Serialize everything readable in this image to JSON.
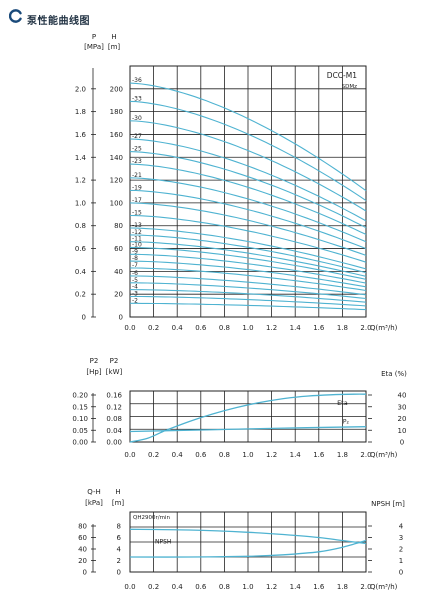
{
  "header": {
    "title": "泵性能曲线图"
  },
  "colors": {
    "curve": "#4fb3d1",
    "grid": "#222222",
    "text": "#222222",
    "logo": "#1a4a7a"
  },
  "chart_data": [
    {
      "id": "main",
      "type": "line",
      "model": "DCC-M1",
      "model_sub": "SDMz",
      "x_unit_label": "Q(m³/h)",
      "x_ticks": [
        "0.0",
        "0.2",
        "0.4",
        "0.6",
        "0.8",
        "1.0",
        "1.2",
        "1.4",
        "1.6",
        "1.8",
        "2.0"
      ],
      "xlim": [
        0,
        2.0
      ],
      "left_axis": {
        "header_symbol": "P",
        "header_unit": "[MPa]",
        "ticks": [
          "2.0",
          "1.8",
          "1.6",
          "1.4",
          "1.2",
          "1.0",
          "0.8",
          "0.6",
          "0.4",
          "0.2",
          "0"
        ]
      },
      "right_axis": {
        "header_symbol": "H",
        "header_unit": "[m]",
        "ticks": [
          "200",
          "180",
          "160",
          "140",
          "120",
          "100",
          "80",
          "60",
          "40",
          "20",
          "0"
        ]
      },
      "ylim": [
        0,
        220
      ],
      "grid": true,
      "series": [
        {
          "name": "-36",
          "h0": 205
        },
        {
          "name": "-33",
          "h0": 189
        },
        {
          "name": "-30",
          "h0": 172
        },
        {
          "name": "-27",
          "h0": 156
        },
        {
          "name": "-25",
          "h0": 145
        },
        {
          "name": "-23",
          "h0": 134
        },
        {
          "name": "-21",
          "h0": 122
        },
        {
          "name": "-19",
          "h0": 111
        },
        {
          "name": "-17",
          "h0": 100
        },
        {
          "name": "-15",
          "h0": 89
        },
        {
          "name": "-13",
          "h0": 78
        },
        {
          "name": "-12",
          "h0": 72
        },
        {
          "name": "-11",
          "h0": 66
        },
        {
          "name": "-10",
          "h0": 61
        },
        {
          "name": "-9",
          "h0": 55
        },
        {
          "name": "-8",
          "h0": 49
        },
        {
          "name": "-7",
          "h0": 43
        },
        {
          "name": "-6",
          "h0": 36
        },
        {
          "name": "-5",
          "h0": 30
        },
        {
          "name": "-4",
          "h0": 24
        },
        {
          "name": "-3",
          "h0": 18
        },
        {
          "name": "-2",
          "h0": 12
        }
      ],
      "shape_exponent": 1.6,
      "drop_at_max": 0.46
    },
    {
      "id": "power",
      "type": "line",
      "x_unit_label": "Q(m³/h)",
      "x_ticks": [
        "0.0",
        "0.2",
        "0.4",
        "0.6",
        "0.8",
        "1.0",
        "1.2",
        "1.4",
        "1.6",
        "1.8",
        "2.0"
      ],
      "xlim": [
        0,
        2.0
      ],
      "left_outer_axis": {
        "header_symbol": "P2",
        "header_unit": "[Hp]",
        "ticks": [
          "0.20",
          "0.15",
          "0.10",
          "0.05",
          "0.00"
        ]
      },
      "left_inner_axis": {
        "header_symbol": "P2",
        "header_unit": "[kW]",
        "ticks": [
          "0.16",
          "0.12",
          "0.08",
          "0.04",
          "0.00"
        ]
      },
      "right_axis": {
        "header_symbol": "Eta",
        "header_unit": "(%)",
        "ticks": [
          "40",
          "30",
          "20",
          "10",
          "0"
        ]
      },
      "ylim": [
        0,
        0.16
      ],
      "eta_lim": [
        0,
        40
      ],
      "grid": true,
      "eta_label": "Eta",
      "p2_label": "P₂",
      "eta_curve": {
        "x": [
          0.0,
          0.15,
          0.3,
          0.5,
          0.7,
          0.9,
          1.1,
          1.3,
          1.5,
          1.7,
          1.9,
          2.0
        ],
        "y": [
          0,
          3,
          9,
          16,
          22,
          27,
          31,
          34,
          36,
          37,
          37.5,
          37.5
        ]
      },
      "p2_curve": {
        "x": [
          0.0,
          0.5,
          1.0,
          1.5,
          2.0
        ],
        "y": [
          0.033,
          0.037,
          0.041,
          0.045,
          0.048
        ]
      }
    },
    {
      "id": "npsh",
      "type": "line",
      "x_unit_label": "Q(m³/h)",
      "x_ticks": [
        "0.0",
        "0.2",
        "0.4",
        "0.6",
        "0.8",
        "1.0",
        "1.2",
        "1.4",
        "1.6",
        "1.8",
        "2.0"
      ],
      "xlim": [
        0,
        2.0
      ],
      "left_outer_axis": {
        "header_symbol": "Q-H",
        "header_unit": "[kPa]",
        "ticks": [
          "80",
          "60",
          "40",
          "20",
          "0"
        ]
      },
      "left_inner_axis": {
        "header_symbol": "H",
        "header_unit": "[m]",
        "ticks": [
          "8",
          "6",
          "4",
          "2",
          "0"
        ]
      },
      "right_axis": {
        "header_symbol": "NPSH",
        "header_unit": "[m]",
        "ticks": [
          "4",
          "3",
          "2",
          "1",
          "0"
        ]
      },
      "ylim": [
        0,
        8
      ],
      "npsh_lim": [
        0,
        4
      ],
      "grid": true,
      "qh_label": "QH2900r/min",
      "npsh_label": "NPSH",
      "qh_curve": {
        "x": [
          0.0,
          0.5,
          1.0,
          1.3,
          1.6,
          1.8,
          2.0
        ],
        "y": [
          5.7,
          5.6,
          5.3,
          5.0,
          4.6,
          4.2,
          3.8
        ]
      },
      "npsh_curve": {
        "x": [
          0.0,
          0.5,
          1.0,
          1.3,
          1.6,
          1.8,
          2.0
        ],
        "y": [
          1.0,
          1.0,
          1.05,
          1.15,
          1.35,
          1.65,
          2.1
        ]
      }
    }
  ]
}
